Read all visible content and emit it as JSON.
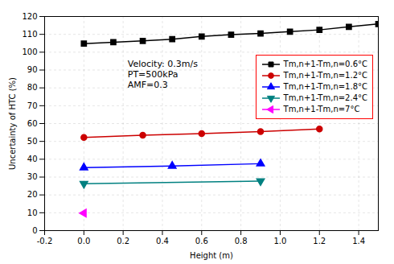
{
  "chart_data": {
    "type": "line",
    "series": [
      {
        "name": "Tm,n+1-Tm,n=0.6°C",
        "color": "black",
        "marker": "square",
        "x": [
          0.0,
          0.15,
          0.3,
          0.45,
          0.6,
          0.75,
          0.9,
          1.05,
          1.2,
          1.35,
          1.5
        ],
        "values": [
          104.8,
          105.6,
          106.3,
          107.3,
          108.8,
          109.8,
          110.5,
          111.5,
          112.5,
          114.2,
          115.8
        ]
      },
      {
        "name": "Tm,n+1-Tm,n=1.2°C",
        "color": "#cc0000",
        "marker": "circle",
        "x": [
          0.0,
          0.3,
          0.6,
          0.9,
          1.2
        ],
        "values": [
          52.2,
          53.5,
          54.4,
          55.5,
          57.0
        ]
      },
      {
        "name": "Tm,n+1-Tm,n=1.8°C",
        "color": "blue",
        "marker": "triangle-up",
        "x": [
          0.0,
          0.45,
          0.9
        ],
        "values": [
          35.3,
          36.2,
          37.5
        ]
      },
      {
        "name": "Tm,n+1-Tm,n=2.4°C",
        "color": "teal",
        "marker": "triangle-down",
        "x": [
          0.0,
          0.9
        ],
        "values": [
          26.3,
          27.8
        ]
      },
      {
        "name": "Tm,n+1-Tm,n=7°C",
        "color": "magenta",
        "marker": "triangle-left",
        "x": [
          0.0
        ],
        "values": [
          9.8
        ]
      }
    ],
    "xlim": [
      -0.2,
      1.5
    ],
    "ylim": [
      0,
      120
    ],
    "xticks": [
      -0.2,
      {
        "value": 0.0,
        "label": "0.0"
      },
      0.2,
      0.4,
      0.6,
      0.8,
      {
        "value": 1.0,
        "label": "1.0"
      },
      1.2,
      1.4
    ],
    "yticks": [
      0,
      10,
      20,
      30,
      40,
      50,
      60,
      70,
      80,
      90,
      100,
      110,
      120
    ],
    "xlabel": "Height (m)",
    "ylabel": "Uncertainty of HTC (%)",
    "annotations": [
      "Velocity: 0.3m/s",
      "PT=500kPa",
      "AMF=0.3"
    ],
    "grid": true,
    "legend": "upper right"
  }
}
